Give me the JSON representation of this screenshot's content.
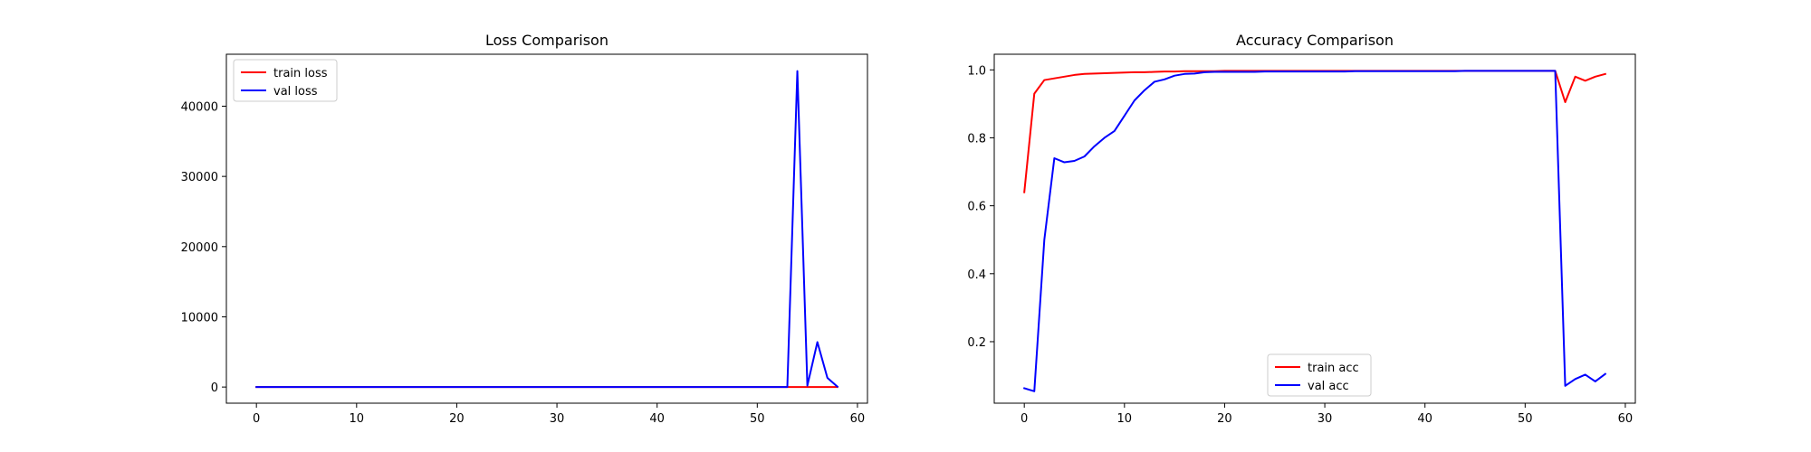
{
  "chart_data": [
    {
      "type": "line",
      "title": "Loss Comparison",
      "xlabel": "",
      "ylabel": "",
      "xlim": [
        -3,
        61
      ],
      "ylim": [
        -2300,
        47400
      ],
      "xticks": [
        0,
        10,
        20,
        30,
        40,
        50,
        60
      ],
      "yticks": [
        0,
        10000,
        20000,
        30000,
        40000
      ],
      "legend_position": "top-left",
      "grid": false,
      "x": [
        0,
        1,
        2,
        3,
        4,
        5,
        6,
        7,
        8,
        9,
        10,
        11,
        12,
        13,
        14,
        15,
        16,
        17,
        18,
        19,
        20,
        21,
        22,
        23,
        24,
        25,
        26,
        27,
        28,
        29,
        30,
        31,
        32,
        33,
        34,
        35,
        36,
        37,
        38,
        39,
        40,
        41,
        42,
        43,
        44,
        45,
        46,
        47,
        48,
        49,
        50,
        51,
        52,
        53,
        54,
        55,
        56,
        57,
        58
      ],
      "series": [
        {
          "name": "train loss",
          "color": "#ff0000",
          "values": [
            0.9,
            0.2,
            0.1,
            0.08,
            0.07,
            0.06,
            0.05,
            0.05,
            0.04,
            0.04,
            0.04,
            0.03,
            0.03,
            0.03,
            0.03,
            0.03,
            0.02,
            0.02,
            0.02,
            0.02,
            0.02,
            0.02,
            0.02,
            0.02,
            0.02,
            0.02,
            0.02,
            0.02,
            0.02,
            0.02,
            0.02,
            0.02,
            0.02,
            0.02,
            0.02,
            0.02,
            0.02,
            0.02,
            0.02,
            0.02,
            0.02,
            0.02,
            0.02,
            0.02,
            0.02,
            0.02,
            0.02,
            0.02,
            0.02,
            0.02,
            0.02,
            0.02,
            0.02,
            0.02,
            0.3,
            0.1,
            0.08,
            0.07,
            0.06
          ]
        },
        {
          "name": "val loss",
          "color": "#0000ff",
          "values": [
            3,
            3,
            2,
            1,
            1,
            1,
            1,
            1,
            1,
            0.5,
            0.5,
            0.3,
            0.2,
            0.2,
            0.1,
            0.1,
            0.1,
            0.1,
            0.1,
            0.1,
            0.1,
            0.1,
            0.1,
            0.1,
            0.1,
            0.1,
            0.1,
            0.1,
            0.1,
            0.1,
            0.1,
            0.1,
            0.1,
            0.1,
            0.1,
            0.1,
            0.1,
            0.1,
            0.1,
            0.1,
            0.1,
            0.1,
            0.1,
            0.1,
            0.1,
            0.1,
            0.1,
            0.1,
            0.1,
            0.1,
            0.1,
            0.1,
            0.1,
            0.1,
            45000,
            200,
            6400,
            1300,
            50
          ]
        }
      ]
    },
    {
      "type": "line",
      "title": "Accuracy Comparison",
      "xlabel": "",
      "ylabel": "",
      "xlim": [
        -3,
        61
      ],
      "ylim": [
        0.019,
        1.046
      ],
      "xticks": [
        0,
        10,
        20,
        30,
        40,
        50,
        60
      ],
      "yticks": [
        0.2,
        0.4,
        0.6,
        0.8,
        1.0
      ],
      "ytick_labels": [
        "0.2",
        "0.4",
        "0.6",
        "0.8",
        "1.0"
      ],
      "legend_position": "bottom-center",
      "grid": false,
      "x": [
        0,
        1,
        2,
        3,
        4,
        5,
        6,
        7,
        8,
        9,
        10,
        11,
        12,
        13,
        14,
        15,
        16,
        17,
        18,
        19,
        20,
        21,
        22,
        23,
        24,
        25,
        26,
        27,
        28,
        29,
        30,
        31,
        32,
        33,
        34,
        35,
        36,
        37,
        38,
        39,
        40,
        41,
        42,
        43,
        44,
        45,
        46,
        47,
        48,
        49,
        50,
        51,
        52,
        53,
        54,
        55,
        56,
        57,
        58
      ],
      "series": [
        {
          "name": "train acc",
          "color": "#ff0000",
          "values": [
            0.64,
            0.93,
            0.97,
            0.975,
            0.98,
            0.985,
            0.988,
            0.989,
            0.99,
            0.991,
            0.992,
            0.993,
            0.993,
            0.994,
            0.995,
            0.995,
            0.996,
            0.996,
            0.996,
            0.996,
            0.997,
            0.997,
            0.997,
            0.997,
            0.997,
            0.997,
            0.997,
            0.997,
            0.997,
            0.997,
            0.997,
            0.997,
            0.997,
            0.997,
            0.997,
            0.997,
            0.997,
            0.997,
            0.997,
            0.997,
            0.997,
            0.997,
            0.997,
            0.997,
            0.997,
            0.997,
            0.997,
            0.997,
            0.997,
            0.997,
            0.997,
            0.997,
            0.997,
            0.997,
            0.905,
            0.98,
            0.968,
            0.98,
            0.988
          ]
        },
        {
          "name": "val acc",
          "color": "#0000ff",
          "values": [
            0.063,
            0.054,
            0.5,
            0.74,
            0.728,
            0.732,
            0.745,
            0.775,
            0.8,
            0.82,
            0.865,
            0.91,
            0.94,
            0.965,
            0.972,
            0.983,
            0.988,
            0.989,
            0.993,
            0.994,
            0.994,
            0.994,
            0.994,
            0.994,
            0.995,
            0.995,
            0.995,
            0.995,
            0.995,
            0.995,
            0.995,
            0.995,
            0.995,
            0.996,
            0.996,
            0.996,
            0.996,
            0.996,
            0.996,
            0.996,
            0.996,
            0.996,
            0.996,
            0.996,
            0.997,
            0.997,
            0.997,
            0.997,
            0.997,
            0.997,
            0.997,
            0.997,
            0.997,
            0.997,
            0.07,
            0.09,
            0.103,
            0.083,
            0.105
          ]
        }
      ]
    }
  ]
}
